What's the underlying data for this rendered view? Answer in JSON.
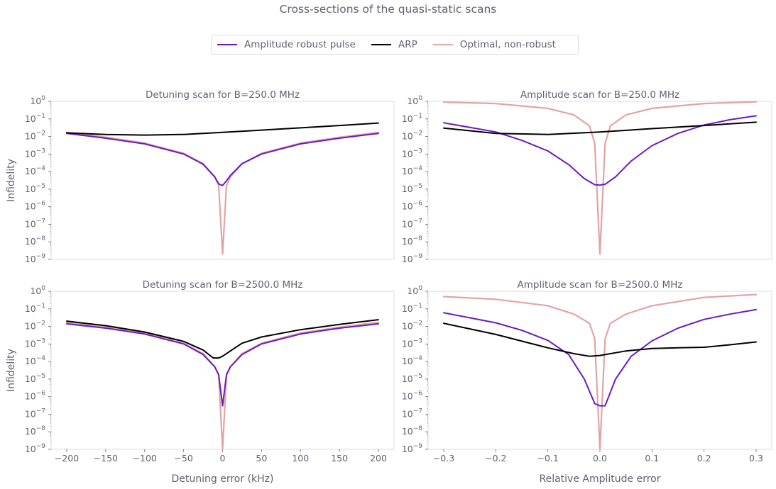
{
  "figure": {
    "suptitle": "Cross-sections of the quasi-static scans",
    "legend": [
      {
        "label": "Amplitude robust pulse",
        "color": "#6a1bc0"
      },
      {
        "label": "ARP",
        "color": "#000000"
      },
      {
        "label": "Optimal, non-robust",
        "color": "#e2a4a4"
      }
    ]
  },
  "chart_data": [
    {
      "type": "line",
      "title": "Detuning scan for B=250.0 MHz",
      "xlabel": "",
      "ylabel": "Infidelity",
      "yscale": "log",
      "ylim": [
        1e-09,
        1
      ],
      "xlim": [
        -220,
        220
      ],
      "xticks_visible": false,
      "yticks": [
        "10^0",
        "10^-1",
        "10^-2",
        "10^-3",
        "10^-4",
        "10^-5",
        "10^-6",
        "10^-7",
        "10^-8",
        "10^-9"
      ],
      "series": [
        {
          "name": "Optimal, non-robust",
          "x": [
            -200,
            -150,
            -100,
            -50,
            -25,
            -10,
            -5,
            0,
            5,
            10,
            25,
            50,
            100,
            150,
            200
          ],
          "y": [
            0.017,
            0.009,
            0.0042,
            0.0011,
            0.00028,
            5e-05,
            1.6e-05,
            2e-09,
            1.6e-05,
            5e-05,
            0.00028,
            0.0011,
            0.0042,
            0.009,
            0.017
          ]
        },
        {
          "name": "Amplitude robust pulse",
          "x": [
            -200,
            -150,
            -100,
            -50,
            -25,
            -10,
            -5,
            0,
            5,
            10,
            25,
            50,
            100,
            150,
            200
          ],
          "y": [
            0.015,
            0.008,
            0.0038,
            0.001,
            0.00026,
            5e-05,
            2e-05,
            1.6e-05,
            3e-05,
            6e-05,
            0.00028,
            0.001,
            0.0038,
            0.008,
            0.015
          ]
        },
        {
          "name": "ARP",
          "x": [
            -200,
            -150,
            -100,
            -50,
            0,
            50,
            100,
            150,
            200
          ],
          "y": [
            0.016,
            0.013,
            0.012,
            0.013,
            0.017,
            0.023,
            0.031,
            0.042,
            0.058
          ]
        }
      ]
    },
    {
      "type": "line",
      "title": "Amplitude scan for B=250.0 MHz",
      "xlabel": "",
      "ylabel": "",
      "yscale": "log",
      "ylim": [
        1e-09,
        1
      ],
      "xlim": [
        -0.33,
        0.33
      ],
      "xticks_visible": false,
      "yticks": [
        "10^0",
        "10^-1",
        "10^-2",
        "10^-3",
        "10^-4",
        "10^-5",
        "10^-6",
        "10^-7",
        "10^-8",
        "10^-9"
      ],
      "series": [
        {
          "name": "Optimal, non-robust",
          "x": [
            -0.3,
            -0.2,
            -0.1,
            -0.05,
            -0.02,
            -0.01,
            0,
            0.01,
            0.02,
            0.05,
            0.1,
            0.2,
            0.3
          ],
          "y": [
            0.9,
            0.75,
            0.4,
            0.17,
            0.04,
            0.004,
            2e-09,
            0.004,
            0.04,
            0.17,
            0.4,
            0.75,
            0.95
          ]
        },
        {
          "name": "Amplitude robust pulse",
          "x": [
            -0.3,
            -0.2,
            -0.15,
            -0.1,
            -0.06,
            -0.03,
            -0.01,
            0,
            0.01,
            0.03,
            0.06,
            0.1,
            0.15,
            0.2,
            0.25,
            0.3
          ],
          "y": [
            0.06,
            0.018,
            0.006,
            0.0015,
            0.00025,
            4e-05,
            1.8e-05,
            1.7e-05,
            1.9e-05,
            5e-05,
            0.0004,
            0.003,
            0.015,
            0.045,
            0.09,
            0.15
          ]
        },
        {
          "name": "ARP",
          "x": [
            -0.3,
            -0.2,
            -0.1,
            0,
            0.1,
            0.2,
            0.3
          ],
          "y": [
            0.03,
            0.015,
            0.013,
            0.018,
            0.028,
            0.042,
            0.065
          ]
        }
      ]
    },
    {
      "type": "line",
      "title": "Detuning scan for B=2500.0 MHz",
      "xlabel": "Detuning error (kHz)",
      "ylabel": "Infidelity",
      "yscale": "log",
      "ylim": [
        1e-09,
        1
      ],
      "xlim": [
        -220,
        220
      ],
      "xticks": [
        "−200",
        "−150",
        "−100",
        "−50",
        "0",
        "50",
        "100",
        "150",
        "200"
      ],
      "xtick_values": [
        -200,
        -150,
        -100,
        -50,
        0,
        50,
        100,
        150,
        200
      ],
      "yticks": [
        "10^0",
        "10^-1",
        "10^-2",
        "10^-3",
        "10^-4",
        "10^-5",
        "10^-6",
        "10^-7",
        "10^-8",
        "10^-9"
      ],
      "series": [
        {
          "name": "Optimal, non-robust",
          "x": [
            -200,
            -150,
            -100,
            -50,
            -25,
            -10,
            -5,
            0,
            5,
            10,
            25,
            50,
            100,
            150,
            200
          ],
          "y": [
            0.017,
            0.009,
            0.0042,
            0.0011,
            0.00028,
            5e-05,
            1.6e-05,
            1e-09,
            1.6e-05,
            5e-05,
            0.00028,
            0.0011,
            0.0042,
            0.009,
            0.017
          ]
        },
        {
          "name": "Amplitude robust pulse",
          "x": [
            -200,
            -150,
            -100,
            -50,
            -25,
            -10,
            -5,
            0,
            5,
            10,
            25,
            50,
            100,
            150,
            200
          ],
          "y": [
            0.014,
            0.008,
            0.0037,
            0.001,
            0.00025,
            5e-05,
            1.8e-05,
            3e-07,
            1.8e-05,
            5e-05,
            0.00025,
            0.001,
            0.0037,
            0.008,
            0.014
          ]
        },
        {
          "name": "ARP",
          "x": [
            -200,
            -150,
            -100,
            -50,
            -25,
            -12,
            -5,
            0,
            10,
            25,
            50,
            100,
            150,
            200
          ],
          "y": [
            0.02,
            0.011,
            0.0048,
            0.0014,
            0.00045,
            0.00016,
            0.00016,
            0.0002,
            0.0004,
            0.0011,
            0.0025,
            0.0065,
            0.013,
            0.024
          ]
        }
      ]
    },
    {
      "type": "line",
      "title": "Amplitude scan for B=2500.0 MHz",
      "xlabel": "Relative Amplitude error",
      "ylabel": "",
      "yscale": "log",
      "ylim": [
        1e-09,
        1
      ],
      "xlim": [
        -0.33,
        0.33
      ],
      "xticks": [
        "−0.3",
        "−0.2",
        "−0.1",
        "0.0",
        "0.1",
        "0.2",
        "0.3"
      ],
      "xtick_values": [
        -0.3,
        -0.2,
        -0.1,
        0,
        0.1,
        0.2,
        0.3
      ],
      "yticks": [
        "10^0",
        "10^-1",
        "10^-2",
        "10^-3",
        "10^-4",
        "10^-5",
        "10^-6",
        "10^-7",
        "10^-8",
        "10^-9"
      ],
      "series": [
        {
          "name": "Optimal, non-robust",
          "x": [
            -0.3,
            -0.2,
            -0.1,
            -0.05,
            -0.02,
            -0.01,
            0,
            0.01,
            0.02,
            0.05,
            0.1,
            0.2,
            0.3
          ],
          "y": [
            0.5,
            0.35,
            0.15,
            0.05,
            0.015,
            0.002,
            1e-09,
            0.002,
            0.015,
            0.05,
            0.15,
            0.45,
            0.65
          ]
        },
        {
          "name": "Amplitude robust pulse",
          "x": [
            -0.3,
            -0.2,
            -0.15,
            -0.1,
            -0.06,
            -0.03,
            -0.01,
            0,
            0.01,
            0.03,
            0.06,
            0.1,
            0.15,
            0.2,
            0.25,
            0.3
          ],
          "y": [
            0.06,
            0.016,
            0.006,
            0.0016,
            0.00025,
            1e-05,
            4e-07,
            3e-07,
            3e-07,
            1e-05,
            0.0002,
            0.0015,
            0.008,
            0.025,
            0.05,
            0.09
          ]
        },
        {
          "name": "ARP",
          "x": [
            -0.3,
            -0.2,
            -0.1,
            -0.05,
            -0.02,
            0,
            0.05,
            0.1,
            0.15,
            0.2,
            0.25,
            0.3
          ],
          "y": [
            0.015,
            0.0035,
            0.0006,
            0.00028,
            0.0002,
            0.00022,
            0.0004,
            0.00055,
            0.0006,
            0.00065,
            0.0009,
            0.0013
          ]
        }
      ]
    }
  ]
}
